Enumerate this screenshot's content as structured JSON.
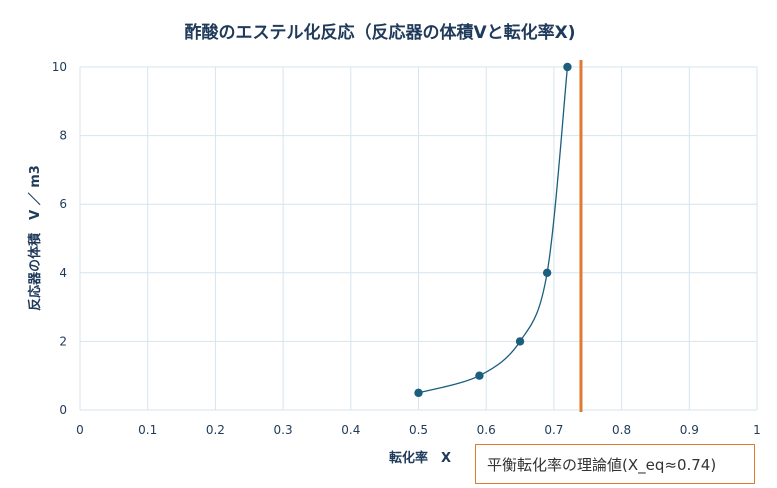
{
  "chart_data": {
    "type": "scatter",
    "title": "酢酸のエステル化反応（反応器の体積Vと転化率X)",
    "xlabel": "転化率　X",
    "ylabel": "反応器の体積　V ／ m3",
    "xlim": [
      0,
      1
    ],
    "ylim": [
      0,
      10
    ],
    "xticks": [
      "0",
      "0.1",
      "0.2",
      "0.3",
      "0.4",
      "0.5",
      "0.6",
      "0.7",
      "0.8",
      "0.9",
      "1"
    ],
    "yticks": [
      "0",
      "2",
      "4",
      "6",
      "8",
      "10"
    ],
    "grid": true,
    "series": [
      {
        "points": [
          {
            "x": 0.5,
            "y": 0.5
          },
          {
            "x": 0.59,
            "y": 1.0
          },
          {
            "x": 0.65,
            "y": 2.0
          },
          {
            "x": 0.69,
            "y": 4.0
          },
          {
            "x": 0.72,
            "y": 10.0
          }
        ],
        "smooth_line": true
      }
    ],
    "reference_line": {
      "x": 0.74,
      "orientation": "vertical"
    },
    "annotation": "平衡転化率の理論値(X_eq≈0.74)"
  },
  "colors": {
    "series": "#1b5e7e",
    "reference_line": "#e07a30",
    "grid": "#d6e4ee",
    "text": "#1f3a5a"
  }
}
